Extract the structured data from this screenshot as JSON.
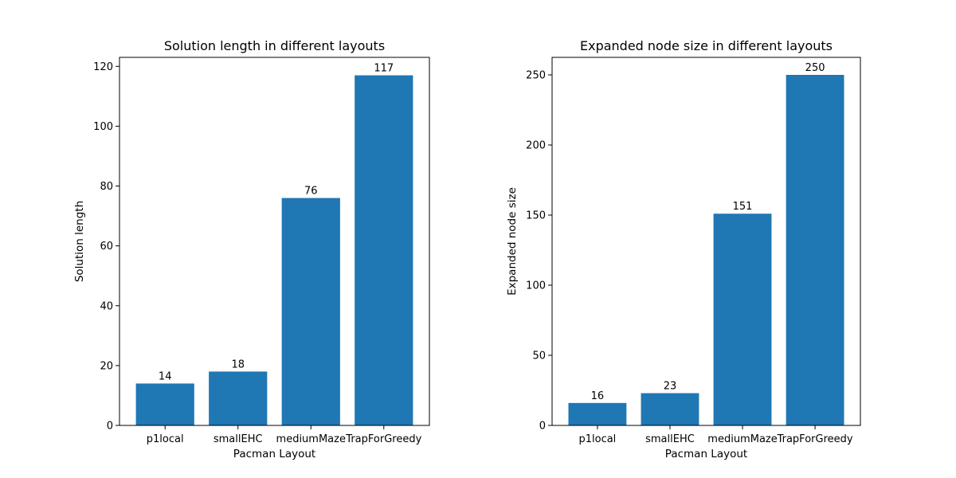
{
  "chart_data": [
    {
      "type": "bar",
      "title": "Solution length in different layouts",
      "xlabel": "Pacman Layout",
      "ylabel": "Solution length",
      "categories": [
        "p1local",
        "smallEHC",
        "mediumMaze",
        "TrapForGreedy"
      ],
      "values": [
        14,
        18,
        76,
        117
      ],
      "ylim": [
        0,
        123
      ],
      "yticks": [
        0,
        20,
        40,
        60,
        80,
        100,
        120
      ],
      "grid": false,
      "bar_color": "#1f77b4"
    },
    {
      "type": "bar",
      "title": "Expanded node size in different layouts",
      "xlabel": "Pacman Layout",
      "ylabel": "Expanded node size",
      "categories": [
        "p1local",
        "smallEHC",
        "mediumMaze",
        "TrapForGreedy"
      ],
      "values": [
        16,
        23,
        151,
        250
      ],
      "ylim": [
        0,
        262.5
      ],
      "yticks": [
        0,
        50,
        100,
        150,
        200,
        250
      ],
      "grid": false,
      "bar_color": "#1f77b4"
    }
  ]
}
